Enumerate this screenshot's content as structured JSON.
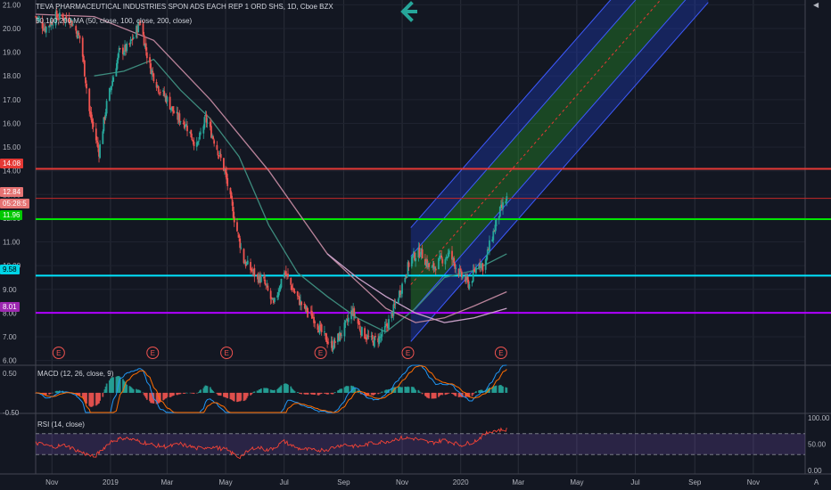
{
  "header": {
    "title": "TEVA PHARMACEUTICAL INDUSTRIES SPON ADS EACH REP 1 ORD SHS, 1D, Cboe BZX",
    "ma_label": "50,100,200 MA (50, close, 100, close, 200, close)"
  },
  "badges": {
    "level_high": "14.08",
    "last_price": "12.84",
    "countdown": "05:28:5",
    "level_green": "11.96",
    "level_cyan": "9.58",
    "level_purple": "8.01"
  },
  "macd": {
    "label": "MACD (12, 26, close, 9)"
  },
  "rsi": {
    "label": "RSI (14, close)"
  },
  "event_markers": [
    "E",
    "E",
    "E",
    "E",
    "E",
    "E"
  ],
  "colors": {
    "background": "#131722",
    "up": "#26a69a",
    "down": "#ef5350",
    "red_line": "#e53935",
    "green_line": "#00e600",
    "cyan_line": "#00e5ff",
    "purple_line": "#b000ff",
    "accent_arrow": "#26a69a"
  },
  "chart_data": [
    {
      "type": "line",
      "ticker": "TEVA",
      "interval": "1D",
      "ylim": [
        5.8,
        21.2
      ],
      "yticks": [
        6.0,
        7.0,
        8.0,
        9.0,
        10.0,
        11.0,
        12.0,
        13.0,
        14.0,
        15.0,
        16.0,
        17.0,
        18.0,
        19.0,
        20.0,
        21.0
      ],
      "x_ticks": [
        "Nov",
        "2019",
        "Mar",
        "May",
        "Jul",
        "Sep",
        "Nov",
        "2020",
        "Mar",
        "May",
        "Jul",
        "Sep",
        "Nov"
      ],
      "x_ticks_date": [
        "2018-11-01",
        "2019-01-01",
        "2019-03-01",
        "2019-05-01",
        "2019-07-01",
        "2019-09-01",
        "2019-11-01",
        "2020-01-01",
        "2020-03-01",
        "2020-05-01",
        "2020-07-01",
        "2020-09-01",
        "2020-11-01"
      ],
      "series": [
        {
          "date": [
            "2018-10-15",
            "2018-10-25",
            "2018-11-05",
            "2018-11-20",
            "2018-12-01",
            "2018-12-10",
            "2018-12-20",
            "2018-12-28",
            "2019-01-10",
            "2019-01-20",
            "2019-02-01",
            "2019-02-10",
            "2019-02-20",
            "2019-03-01",
            "2019-03-10",
            "2019-03-20",
            "2019-04-01",
            "2019-04-10",
            "2019-04-20",
            "2019-04-30",
            "2019-05-10",
            "2019-05-20",
            "2019-06-01",
            "2019-06-10",
            "2019-06-20",
            "2019-07-01",
            "2019-07-10",
            "2019-07-20",
            "2019-08-01",
            "2019-08-10",
            "2019-08-20",
            "2019-09-01",
            "2019-09-10",
            "2019-09-20",
            "2019-10-01",
            "2019-10-10",
            "2019-10-20",
            "2019-11-01",
            "2019-11-10",
            "2019-11-20",
            "2019-12-01",
            "2019-12-10",
            "2019-12-20",
            "2020-01-01",
            "2020-01-10",
            "2020-01-20",
            "2020-01-25",
            "2020-02-01",
            "2020-02-10",
            "2020-02-18"
          ],
          "close": [
            20.5,
            20.0,
            20.5,
            20.4,
            19.5,
            16.5,
            14.8,
            16.8,
            19.0,
            19.2,
            20.3,
            18.5,
            17.5,
            17.0,
            16.3,
            16.0,
            15.0,
            16.2,
            15.2,
            14.0,
            12.0,
            10.2,
            9.6,
            9.3,
            8.3,
            9.8,
            9.0,
            8.3,
            7.8,
            7.1,
            6.6,
            7.3,
            8.1,
            7.2,
            6.8,
            7.0,
            7.8,
            9.2,
            10.3,
            10.6,
            9.8,
            10.2,
            10.5,
            9.6,
            9.2,
            10.2,
            9.9,
            11.0,
            12.2,
            12.84
          ]
        }
      ],
      "moving_averages": [
        {
          "name": "MA 50",
          "date": [
            "2018-12-15",
            "2019-01-15",
            "2019-02-15",
            "2019-03-15",
            "2019-04-15",
            "2019-05-15",
            "2019-06-15",
            "2019-07-15",
            "2019-08-15",
            "2019-09-15",
            "2019-10-15",
            "2019-11-15",
            "2019-12-15",
            "2020-01-15",
            "2020-02-18"
          ],
          "value": [
            18.0,
            18.2,
            18.7,
            17.4,
            16.2,
            14.6,
            11.7,
            9.7,
            8.7,
            7.8,
            7.2,
            8.2,
            9.5,
            9.8,
            10.5
          ]
        },
        {
          "name": "MA 100",
          "date": [
            "2018-10-15",
            "2018-12-15",
            "2019-02-15",
            "2019-04-15",
            "2019-06-15",
            "2019-08-15",
            "2019-10-15",
            "2019-11-15",
            "2019-12-15",
            "2020-01-15",
            "2020-02-18"
          ],
          "value": [
            20.6,
            20.5,
            19.5,
            17.0,
            14.0,
            10.5,
            8.2,
            7.6,
            7.8,
            8.3,
            8.9
          ]
        },
        {
          "name": "MA 200",
          "date": [
            "2019-08-15",
            "2019-09-15",
            "2019-10-15",
            "2019-11-15",
            "2019-12-15",
            "2020-01-15",
            "2020-02-18"
          ],
          "value": [
            10.5,
            9.5,
            8.7,
            8.0,
            7.6,
            7.8,
            8.2
          ]
        }
      ],
      "horizontal_levels": [
        {
          "value": 14.08,
          "color": "red"
        },
        {
          "value": 12.84,
          "color": "red",
          "role": "last price"
        },
        {
          "value": 11.96,
          "color": "green"
        },
        {
          "value": 9.58,
          "color": "cyan"
        },
        {
          "value": 8.01,
          "color": "purple"
        }
      ],
      "regression_channel": {
        "start": {
          "date": "2019-11-10",
          "value": 9.2
        },
        "end": {
          "date": "2020-09-15",
          "value": 23.5
        },
        "inner_band": 1.2,
        "outer_band": 2.4
      }
    },
    {
      "type": "line",
      "indicator": "MACD",
      "ylim": [
        -0.5,
        0.7
      ],
      "yticks": [
        0.5,
        -0.5
      ]
    },
    {
      "type": "line",
      "indicator": "RSI",
      "ylim": [
        0,
        100
      ],
      "yticks": [
        100.0,
        50.0,
        0.0
      ],
      "band": [
        30,
        70
      ],
      "series": [
        {
          "date": [
            "2018-10-15",
            "2018-11-01",
            "2018-11-15",
            "2018-12-01",
            "2018-12-15",
            "2019-01-01",
            "2019-01-15",
            "2019-02-01",
            "2019-02-15",
            "2019-03-01",
            "2019-03-15",
            "2019-04-01",
            "2019-04-15",
            "2019-05-01",
            "2019-05-15",
            "2019-06-01",
            "2019-06-15",
            "2019-07-01",
            "2019-07-15",
            "2019-08-01",
            "2019-08-15",
            "2019-09-01",
            "2019-09-15",
            "2019-10-01",
            "2019-10-15",
            "2019-11-01",
            "2019-11-15",
            "2019-12-01",
            "2019-12-15",
            "2020-01-01",
            "2020-01-15",
            "2020-02-01",
            "2020-02-18"
          ],
          "value": [
            52,
            45,
            48,
            35,
            25,
            55,
            62,
            55,
            48,
            45,
            50,
            42,
            45,
            40,
            25,
            45,
            38,
            55,
            42,
            38,
            40,
            50,
            45,
            52,
            55,
            62,
            60,
            52,
            58,
            48,
            55,
            75,
            78
          ]
        }
      ]
    }
  ]
}
